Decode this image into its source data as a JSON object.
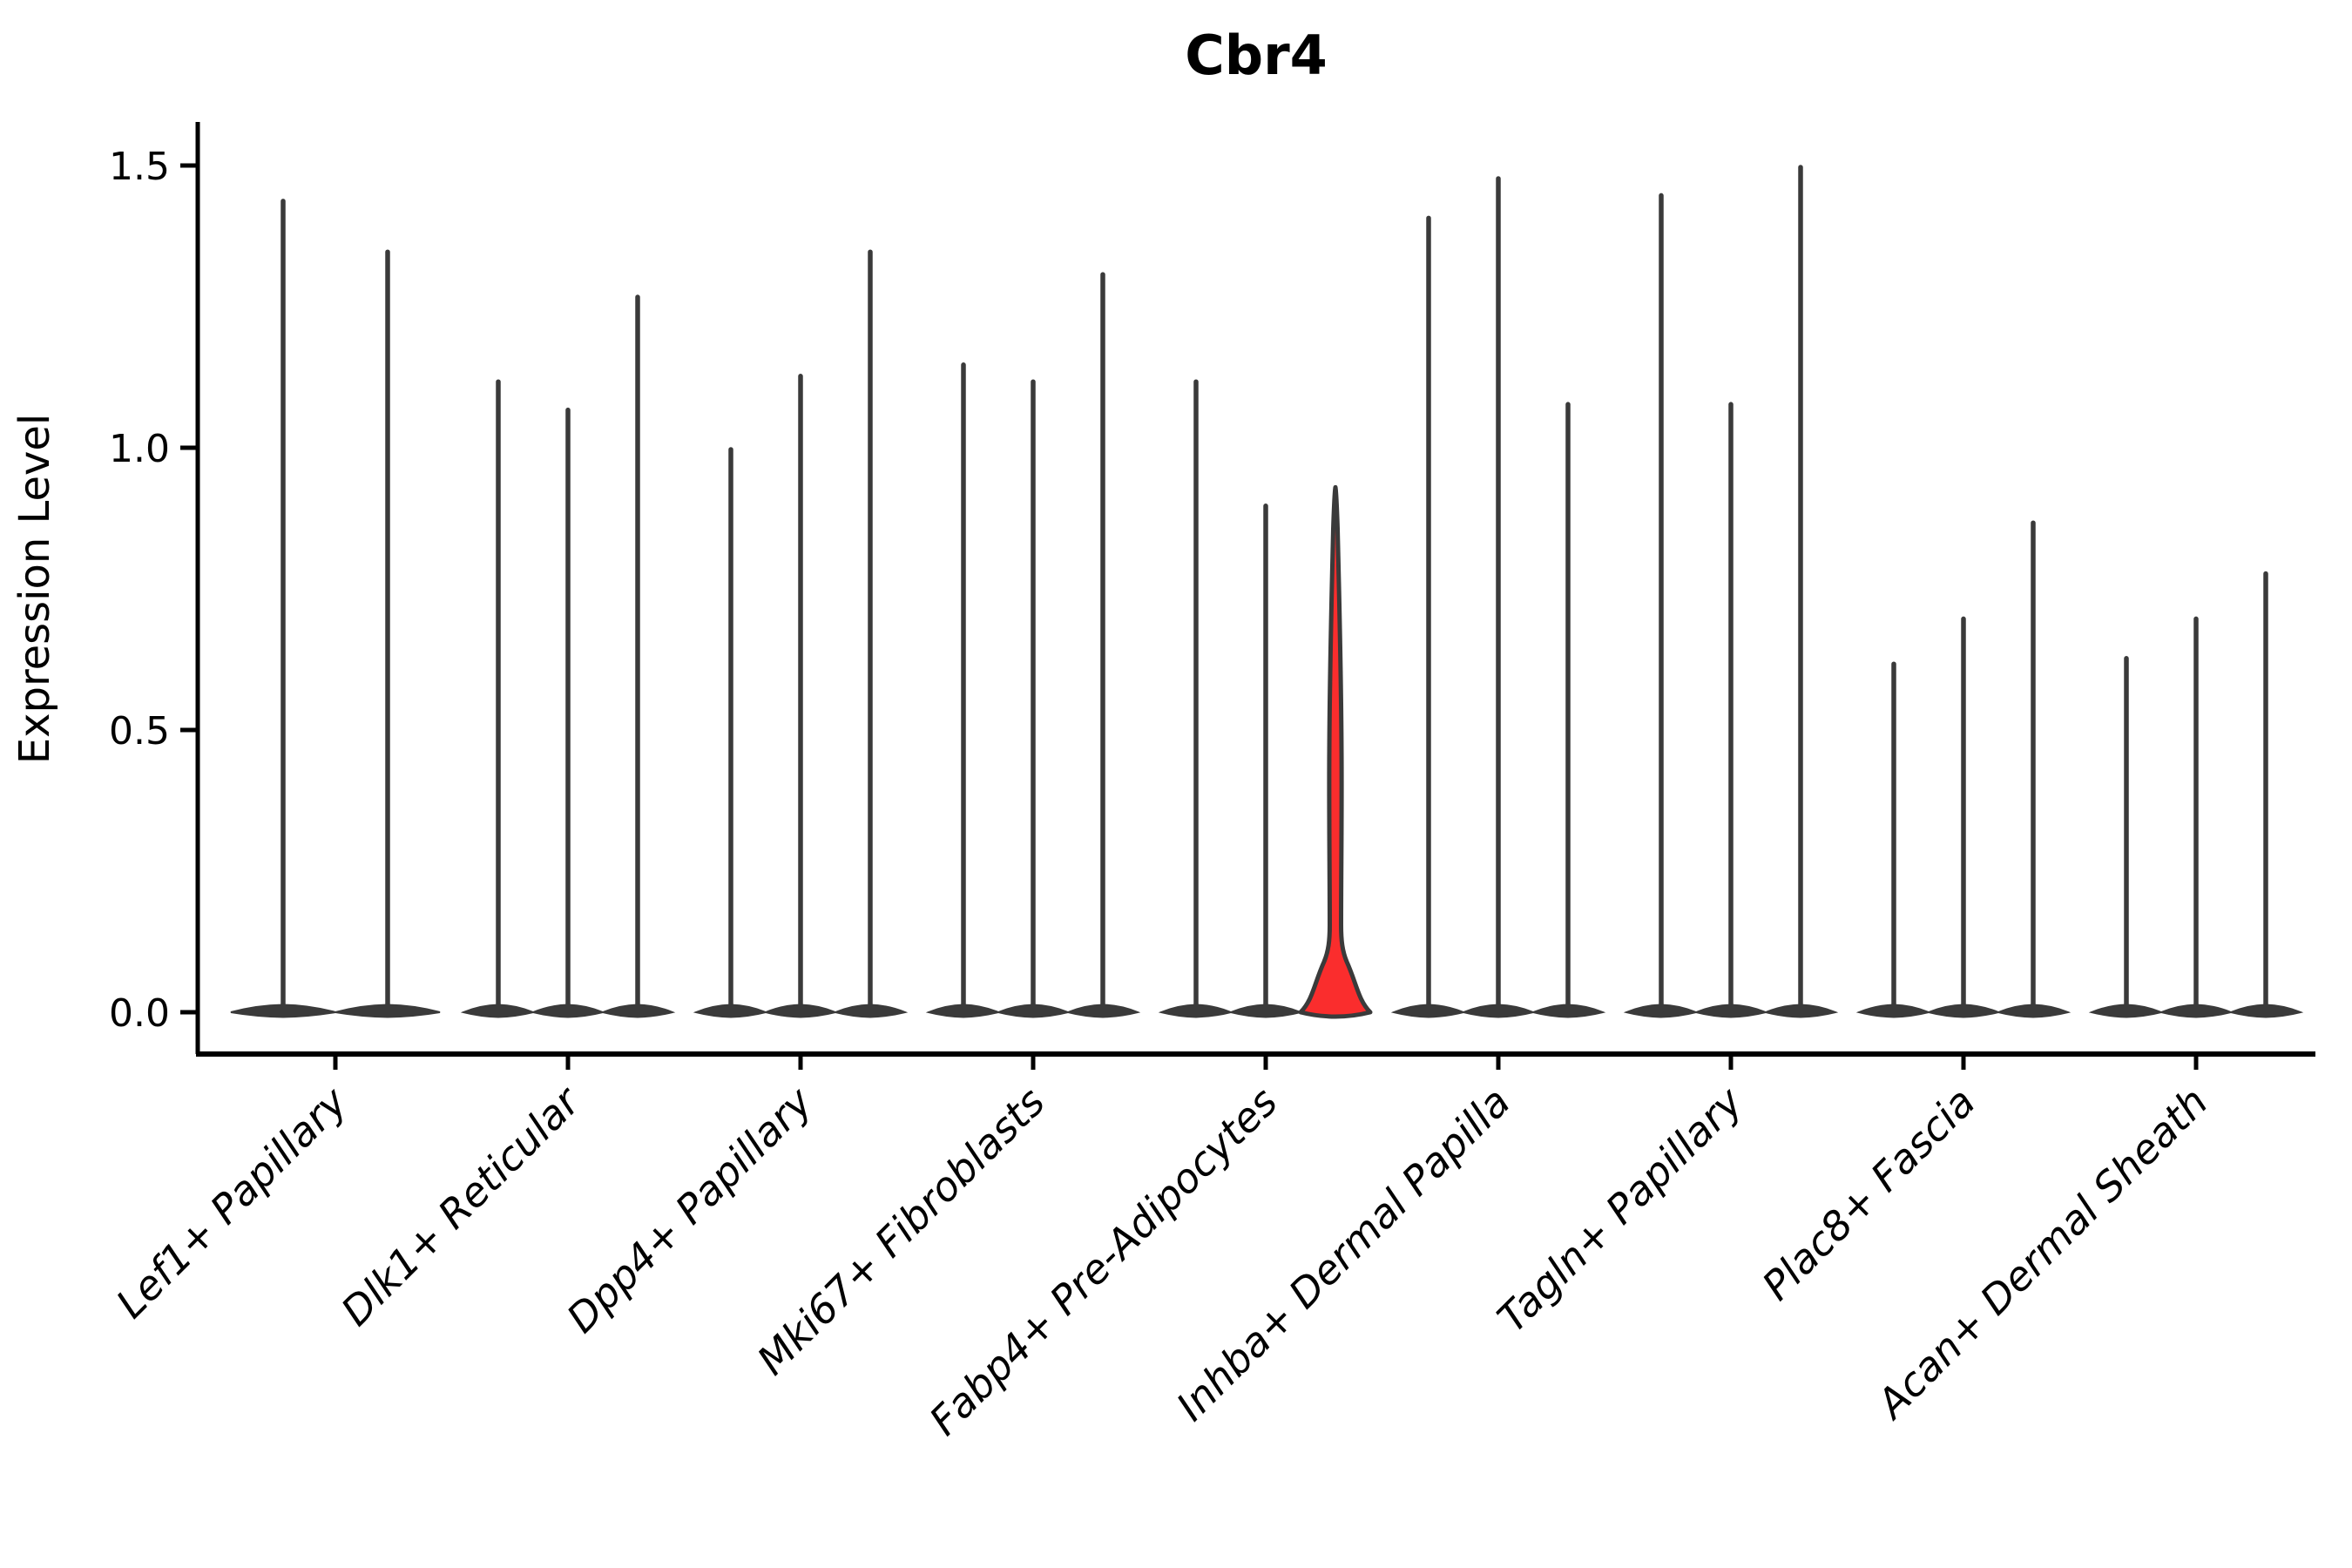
{
  "figure": {
    "title": "Cbr4",
    "ylabel": "Expression Level"
  },
  "style": {
    "background": "#ffffff",
    "axis_color": "#000000",
    "violin_line_color": "#3a3a3a",
    "highlight_fill": "#fa2d2d",
    "text_color": "#000000"
  },
  "chart_data": {
    "type": "violin",
    "title": "Cbr4",
    "xlabel": "",
    "ylabel": "Expression Level",
    "ylim": [
      -0.07,
      1.57
    ],
    "yticks": [
      0.0,
      0.5,
      1.0,
      1.5
    ],
    "grid": false,
    "legend": "none",
    "description": "Stacked-violin style expression plot; every violin is a dense mass at 0 with a hairline spike up to its maximum expression value. The third violin of Fabp4+ Pre-Adipocytes is highlighted red with visible density between 0 and ~0.15.",
    "categories": [
      "Lef1+ Papillary",
      "Dlk1+ Reticular",
      "Dpp4+ Papillary",
      "Mki67+ Fibroblasts",
      "Fabp4+ Pre-Adipocytes",
      "Inhba+ Dermal Papilla",
      "Tagln+ Papillary",
      "Plac8+ Fascia",
      "Acan+ Dermal Sheath"
    ],
    "series": [
      {
        "category": "Lef1+ Papillary",
        "violins": [
          {
            "max": 1.44
          },
          {
            "max": 1.35
          }
        ]
      },
      {
        "category": "Dlk1+ Reticular",
        "violins": [
          {
            "max": 1.12
          },
          {
            "max": 1.07
          },
          {
            "max": 1.27
          }
        ]
      },
      {
        "category": "Dpp4+ Papillary",
        "violins": [
          {
            "max": 1.0
          },
          {
            "max": 1.13
          },
          {
            "max": 1.35
          }
        ]
      },
      {
        "category": "Mki67+ Fibroblasts",
        "violins": [
          {
            "max": 1.15
          },
          {
            "max": 1.12
          },
          {
            "max": 1.31
          }
        ]
      },
      {
        "category": "Fabp4+ Pre-Adipocytes",
        "violins": [
          {
            "max": 1.12
          },
          {
            "max": 0.9
          },
          {
            "max": 0.93,
            "highlighted": true
          }
        ]
      },
      {
        "category": "Inhba+ Dermal Papilla",
        "violins": [
          {
            "max": 1.41
          },
          {
            "max": 1.48
          },
          {
            "max": 1.08
          }
        ]
      },
      {
        "category": "Tagln+ Papillary",
        "violins": [
          {
            "max": 1.45
          },
          {
            "max": 1.08
          },
          {
            "max": 1.5
          }
        ]
      },
      {
        "category": "Plac8+ Fascia",
        "violins": [
          {
            "max": 0.62
          },
          {
            "max": 0.7
          },
          {
            "max": 0.87
          }
        ]
      },
      {
        "category": "Acan+ Dermal Sheath",
        "violins": [
          {
            "max": 0.63
          },
          {
            "max": 0.7
          },
          {
            "max": 0.78
          }
        ]
      }
    ]
  }
}
